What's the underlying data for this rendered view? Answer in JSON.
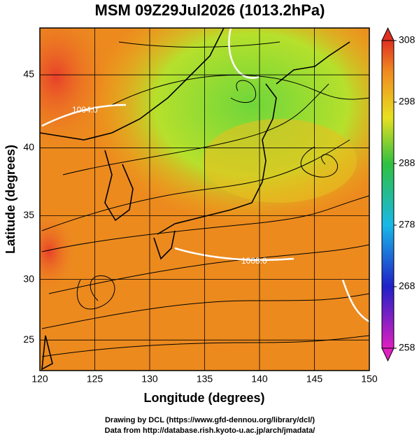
{
  "title": "MSM 09Z29Jul2026 (1013.2hPa)",
  "x_axis": {
    "label": "Longitude (degrees)",
    "lim": [
      120,
      150
    ],
    "ticks": [
      120,
      125,
      130,
      135,
      140,
      145,
      150
    ]
  },
  "y_axis": {
    "label": "Latitude  (degrees)",
    "lim": [
      22.4,
      48
    ],
    "ticks": [
      25,
      30,
      35,
      40,
      45
    ]
  },
  "colorbar": {
    "lim": [
      258,
      308
    ],
    "ticks": [
      258,
      268,
      278,
      288,
      298,
      308
    ]
  },
  "contour_labels": [
    "1004.0",
    "1008.0"
  ],
  "credits": [
    "Drawing by DCL (https://www.gfd-dennou.org/library/dcl/)",
    "Data from http://database.rish.kyoto-u.ac.jp/arch/jmadata/"
  ]
}
